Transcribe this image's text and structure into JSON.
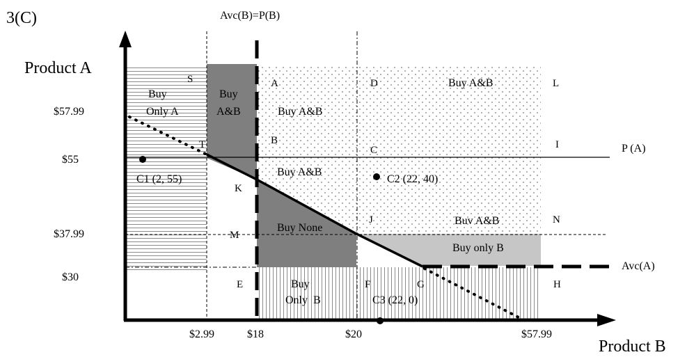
{
  "figure_label": "3(C)",
  "axes": {
    "y_title": "Product A",
    "x_title": "Product B"
  },
  "y_ticks": [
    "$57.99",
    "$55",
    "$37.99",
    "$30"
  ],
  "x_ticks": [
    "$2.99",
    "$18",
    "$20",
    "$57.99"
  ],
  "line_labels": {
    "avc_b": "Avc(B)=P(B)",
    "p_a": "P (A)",
    "avc_a": "Avc(A)"
  },
  "points": {
    "S": "S",
    "T": "T",
    "K": "K",
    "M": "M",
    "E": "E",
    "A": "A",
    "B": "B",
    "C": "C",
    "D": "D",
    "F": "F",
    "G": "G",
    "H": "H",
    "I": "I",
    "J": "J",
    "L": "L",
    "N": "N"
  },
  "regions": {
    "buy_only_a_1": "Buy",
    "buy_only_a_2": "Only A",
    "buy_ab_dark_1": "Buy",
    "buy_ab_dark_2": "A&B",
    "buy_ab_upper": "Buy A&B",
    "buy_ab_mid": "Buy A&B",
    "buy_ab_topright": "Buy A&B",
    "buy_ab_right": "Buv A&B",
    "buy_none": "Buy None",
    "buy_only_b_right": "Buy only B",
    "buy_only_b_bottom_1": "Buy",
    "buy_only_b_bottom_2": "Only  B"
  },
  "consumers": {
    "c1": "C1 (2, 55)",
    "c2": "C2 (22, 40)",
    "c3": "C3 (22, 0)"
  },
  "colors": {
    "dark_fill": "#7f7f7f",
    "light_fill": "#c6c6c6",
    "ink": "#000000"
  }
}
